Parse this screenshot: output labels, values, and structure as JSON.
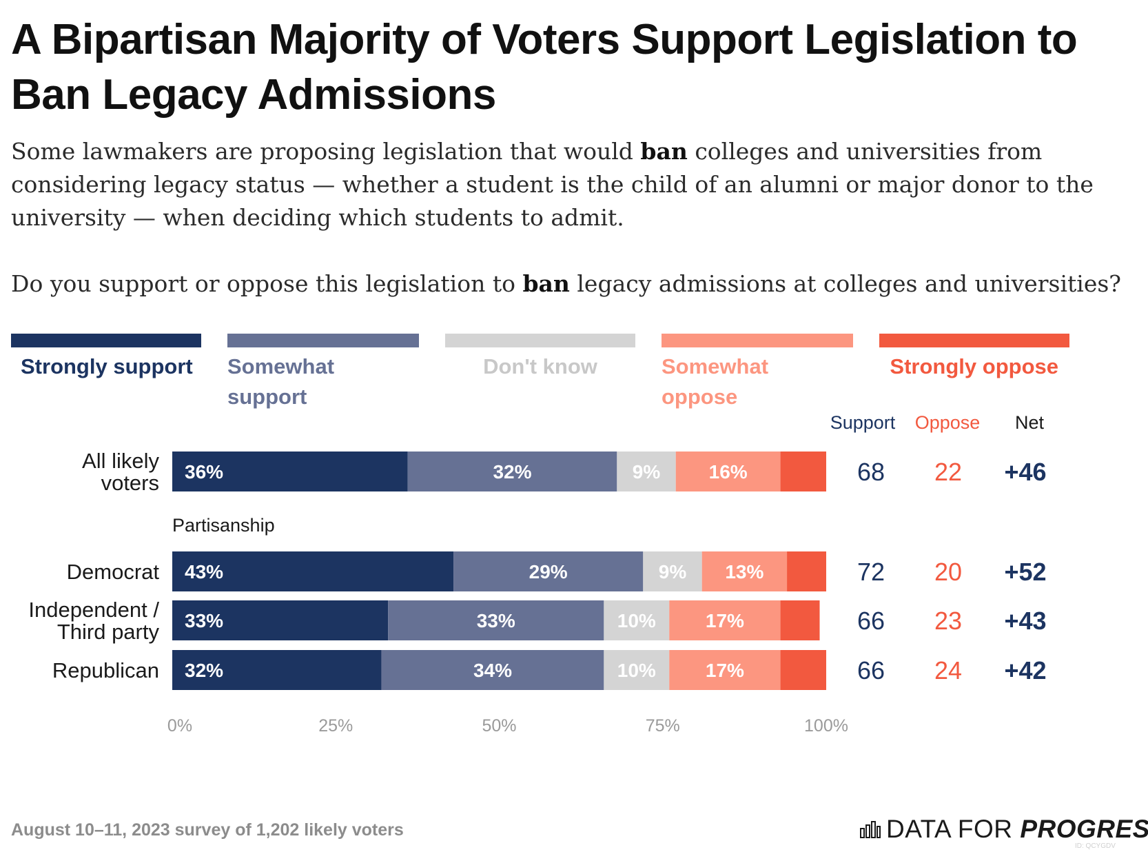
{
  "title": "A Bipartisan Majority of Voters Support Legislation to Ban Legacy Admissions",
  "description": {
    "before_bold": "Some lawmakers are proposing legislation that would ",
    "bold": "ban",
    "after_bold": " colleges and universities from considering legacy status — whether a student is the child of an alumni or major donor to the university — when deciding which students to admit."
  },
  "question": {
    "before_bold": "Do you support or oppose this legislation to ",
    "bold": "ban",
    "after_bold": " legacy admissions at colleges and universities?"
  },
  "legend": [
    {
      "label": "Strongly support",
      "color": "#1c3461",
      "text_color": "#1c3461"
    },
    {
      "label": "Somewhat support",
      "color": "#667194",
      "text_color": "#667194"
    },
    {
      "label": "Don't know",
      "color": "#d4d4d4",
      "text_color": "#c8c8c8"
    },
    {
      "label": "Somewhat oppose",
      "color": "#fc9680",
      "text_color": "#fc9680"
    },
    {
      "label": "Strongly oppose",
      "color": "#f2593f",
      "text_color": "#f2593f"
    }
  ],
  "summary_headers": {
    "support": "Support",
    "oppose": "Oppose",
    "net": "Net"
  },
  "colors": {
    "support": "#1c3461",
    "oppose": "#f2593f",
    "net": "#1c3461",
    "axis_text": "#9a9a9a"
  },
  "chart_data": {
    "type": "bar",
    "orientation": "horizontal-stacked-100",
    "xlim": [
      0,
      100
    ],
    "x_ticks": [
      "0%",
      "25%",
      "50%",
      "75%",
      "100%"
    ],
    "x_tick_values": [
      0,
      25,
      50,
      75,
      100
    ],
    "series_names": [
      "Strongly support",
      "Somewhat support",
      "Don't know",
      "Somewhat oppose",
      "Strongly oppose"
    ],
    "section_label": "Partisanship",
    "rows": [
      {
        "label_lines": [
          "All likely",
          "voters"
        ],
        "values": [
          36,
          32,
          9,
          16,
          7
        ],
        "labels": [
          "36%",
          "32%",
          "9%",
          "16%",
          ""
        ],
        "support": "68",
        "oppose": "22",
        "net": "+46"
      },
      {
        "label_lines": [
          "Democrat"
        ],
        "values": [
          43,
          29,
          9,
          13,
          6
        ],
        "labels": [
          "43%",
          "29%",
          "9%",
          "13%",
          ""
        ],
        "support": "72",
        "oppose": "20",
        "net": "+52"
      },
      {
        "label_lines": [
          "Independent /",
          "Third party"
        ],
        "values": [
          33,
          33,
          10,
          17,
          6
        ],
        "labels": [
          "33%",
          "33%",
          "10%",
          "17%",
          ""
        ],
        "support": "66",
        "oppose": "23",
        "net": "+43"
      },
      {
        "label_lines": [
          "Republican"
        ],
        "values": [
          32,
          34,
          10,
          17,
          7
        ],
        "labels": [
          "32%",
          "34%",
          "10%",
          "17%",
          ""
        ],
        "support": "66",
        "oppose": "24",
        "net": "+42"
      }
    ]
  },
  "footer": "August 10–11, 2023 survey of 1,202 likely voters",
  "brand": {
    "light": "DATA FOR ",
    "bold": "PROGRESS"
  },
  "chart_id": "ID: QCYGDV"
}
